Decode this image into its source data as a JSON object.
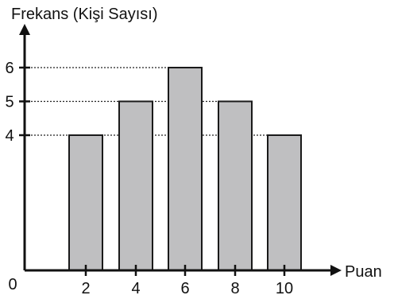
{
  "chart_data": {
    "type": "bar",
    "title": "",
    "ylabel": "Frekans (Kişi Sayısı)",
    "xlabel": "Puan",
    "origin_label": "0",
    "categories": [
      "2",
      "4",
      "6",
      "8",
      "10"
    ],
    "values": [
      4,
      5,
      6,
      5,
      4
    ],
    "y_ticks": [
      "4",
      "5",
      "6"
    ],
    "y_tick_values": [
      4,
      5,
      6
    ],
    "ylim": [
      0,
      7
    ],
    "grid": false,
    "reference_lines": "dotted",
    "colors": {
      "bar_fill": "#bfbfc1",
      "bar_stroke": "#1a1a1a",
      "axis": "#111111"
    }
  }
}
